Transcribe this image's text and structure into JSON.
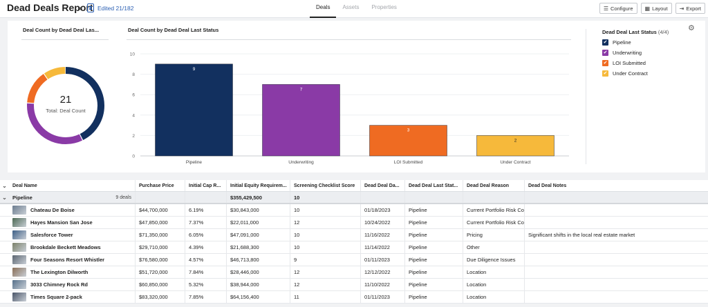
{
  "header": {
    "title": "Dead Deals Report",
    "edited": "Edited 21/182",
    "tabs": [
      {
        "label": "Deals",
        "active": true
      },
      {
        "label": "Assets",
        "active": false
      },
      {
        "label": "Properties",
        "active": false
      }
    ],
    "configure_label": "Configure",
    "layout_label": "Layout",
    "export_label": "Export"
  },
  "donut": {
    "title": "Deal Count by Dead Deal Las...",
    "total": "21",
    "total_label": "Total: Deal Count"
  },
  "chart_data": {
    "type": "bar",
    "title": "Deal Count by Dead Deal Last Status",
    "categories": [
      "Pipeline",
      "Underwriting",
      "LOI Submitted",
      "Under Contract"
    ],
    "values": [
      9,
      7,
      3,
      2
    ],
    "colors": [
      "#12305f",
      "#8a3aa6",
      "#ef6b22",
      "#f6b93b"
    ],
    "ylim": [
      0,
      10
    ],
    "yticks": [
      "0",
      "2",
      "4",
      "6",
      "8",
      "10"
    ]
  },
  "legend": {
    "title": "Dead Deal Last Status",
    "count": "(4/4)",
    "items": [
      {
        "label": "Pipeline",
        "color": "#12305f"
      },
      {
        "label": "Underwriting",
        "color": "#8a3aa6"
      },
      {
        "label": "LOI Submitted",
        "color": "#ef6b22"
      },
      {
        "label": "Under Contract",
        "color": "#f6b93b"
      }
    ]
  },
  "table": {
    "columns": [
      "Deal Name",
      "Purchase Price",
      "Initial Cap R...",
      "Initial Equity Requirem...",
      "Screening Checklist Score",
      "Dead Deal Da...",
      "Dead Deal Last Stat...",
      "Dead Deal Reason",
      "Dead Deal Notes"
    ],
    "group": {
      "label": "Pipeline",
      "count": "9 deals",
      "equity_total": "$355,429,500",
      "score_total": "10"
    },
    "rows": [
      {
        "name": "Chateau De Boise",
        "price": "$44,700,000",
        "cap": "6.19%",
        "equity": "$30,843,000",
        "score": "10",
        "date": "01/18/2023",
        "status": "Pipeline",
        "reason": "Current Portfolio Risk Co",
        "notes": "",
        "thumb": "#6b7c8f"
      },
      {
        "name": "Hayes Mansion San Jose",
        "price": "$47,850,000",
        "cap": "7.37%",
        "equity": "$22,011,000",
        "score": "12",
        "date": "10/24/2022",
        "status": "Pipeline",
        "reason": "Current Portfolio Risk Co",
        "notes": "",
        "thumb": "#4d6a55"
      },
      {
        "name": "Salesforce Tower",
        "price": "$71,350,000",
        "cap": "6.05%",
        "equity": "$47,091,000",
        "score": "10",
        "date": "11/16/2022",
        "status": "Pipeline",
        "reason": "Pricing",
        "notes": "Significant shifts in the local real estate market",
        "thumb": "#3d5f86"
      },
      {
        "name": "Brookdale Beckett Meadows",
        "price": "$29,710,000",
        "cap": "4.39%",
        "equity": "$21,688,300",
        "score": "10",
        "date": "11/14/2022",
        "status": "Pipeline",
        "reason": "Other",
        "notes": "",
        "thumb": "#7a8069"
      },
      {
        "name": "Four Seasons Resort Whistler",
        "price": "$76,580,000",
        "cap": "4.57%",
        "equity": "$46,713,800",
        "score": "9",
        "date": "01/11/2023",
        "status": "Pipeline",
        "reason": "Due Diligence Issues",
        "notes": "",
        "thumb": "#5a6470"
      },
      {
        "name": "The Lexington Dilworth",
        "price": "$51,720,000",
        "cap": "7.84%",
        "equity": "$28,446,000",
        "score": "12",
        "date": "12/12/2022",
        "status": "Pipeline",
        "reason": "Location",
        "notes": "",
        "thumb": "#8a6f58"
      },
      {
        "name": "3033 Chimney Rock Rd",
        "price": "$60,850,000",
        "cap": "5.32%",
        "equity": "$38,944,000",
        "score": "12",
        "date": "11/10/2022",
        "status": "Pipeline",
        "reason": "Location",
        "notes": "",
        "thumb": "#56708a"
      },
      {
        "name": "Times Square 2-pack",
        "price": "$83,320,000",
        "cap": "7.85%",
        "equity": "$64,156,400",
        "score": "11",
        "date": "01/11/2023",
        "status": "Pipeline",
        "reason": "Location",
        "notes": "",
        "thumb": "#4a5568"
      }
    ]
  }
}
